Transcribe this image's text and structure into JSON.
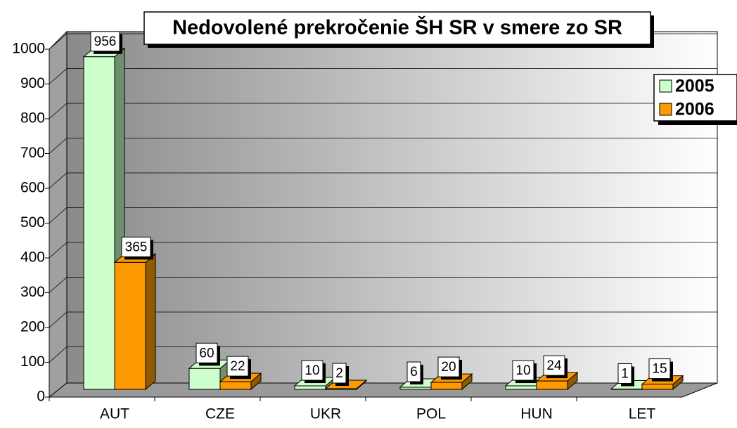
{
  "chart_data": {
    "type": "bar3d",
    "title": "Nedovolené prekročenie ŠH SR v smere zo SR",
    "categories": [
      "AUT",
      "CZE",
      "UKR",
      "POL",
      "HUN",
      "LET"
    ],
    "series": [
      {
        "name": "2005",
        "color": "#ccffcc",
        "side": "#6f8f6f",
        "values": [
          956,
          60,
          10,
          6,
          10,
          1
        ]
      },
      {
        "name": "2006",
        "color": "#ff9900",
        "side": "#8f5a00",
        "values": [
          365,
          22,
          2,
          20,
          24,
          15
        ]
      }
    ],
    "ylim": [
      0,
      1000
    ],
    "yticks": [
      0,
      100,
      200,
      300,
      400,
      500,
      600,
      700,
      800,
      900,
      1000
    ],
    "grid": true,
    "legend": "right"
  }
}
